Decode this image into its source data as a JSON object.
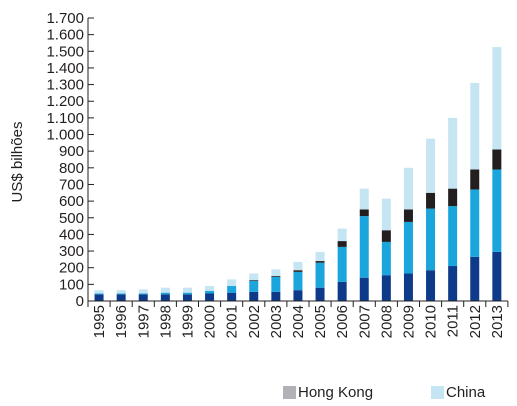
{
  "chart_data": {
    "type": "bar",
    "stacked": true,
    "ylabel": "US$ bilhões",
    "xlabel": "",
    "ylim": [
      0,
      1700
    ],
    "yticks": [
      0,
      100,
      200,
      300,
      400,
      500,
      600,
      700,
      800,
      900,
      1000,
      1100,
      1200,
      1300,
      1400,
      1500,
      1600,
      1700
    ],
    "ytick_labels": [
      "0",
      "100",
      "200",
      "300",
      "400",
      "500",
      "600",
      "700",
      "800",
      "900",
      "1.000",
      "1.100",
      "1.200",
      "1.300",
      "1.400",
      "1.500",
      "1.600",
      "1.700"
    ],
    "categories": [
      "1995",
      "1996",
      "1997",
      "1998",
      "1999",
      "2000",
      "2001",
      "2002",
      "2003",
      "2004",
      "2005",
      "2006",
      "2007",
      "2008",
      "2009",
      "2010",
      "2011",
      "2012",
      "2013"
    ],
    "series": [
      {
        "key": "s1",
        "name": "",
        "color": "#0d3b8a",
        "values": [
          40,
          40,
          40,
          40,
          40,
          45,
          50,
          55,
          55,
          65,
          80,
          115,
          140,
          155,
          165,
          185,
          210,
          265,
          295
        ]
      },
      {
        "key": "s2",
        "name": "",
        "color": "#1aa5dc",
        "values": [
          5,
          5,
          5,
          10,
          10,
          15,
          40,
          65,
          90,
          110,
          150,
          210,
          370,
          200,
          310,
          370,
          360,
          405,
          495
        ]
      },
      {
        "key": "s3",
        "name": "",
        "color": "#231f20",
        "values": [
          0,
          0,
          0,
          0,
          0,
          0,
          0,
          5,
          5,
          10,
          10,
          35,
          40,
          70,
          75,
          95,
          105,
          120,
          120
        ]
      },
      {
        "key": "hk",
        "name": "Hong Kong",
        "color": "#b0b2b5",
        "values": [
          0,
          0,
          0,
          0,
          0,
          0,
          0,
          0,
          0,
          0,
          0,
          0,
          0,
          0,
          0,
          0,
          0,
          0,
          0
        ]
      },
      {
        "key": "china",
        "name": "China",
        "color": "#c5e5f2",
        "values": [
          20,
          20,
          25,
          30,
          30,
          30,
          40,
          40,
          40,
          50,
          55,
          75,
          125,
          190,
          250,
          325,
          425,
          520,
          615
        ]
      }
    ],
    "legend": [
      {
        "name": "Hong Kong",
        "color": "#b0b2b5"
      },
      {
        "name": "China",
        "color": "#c5e5f2"
      }
    ],
    "legend_position": "bottom-right",
    "grid": false
  }
}
